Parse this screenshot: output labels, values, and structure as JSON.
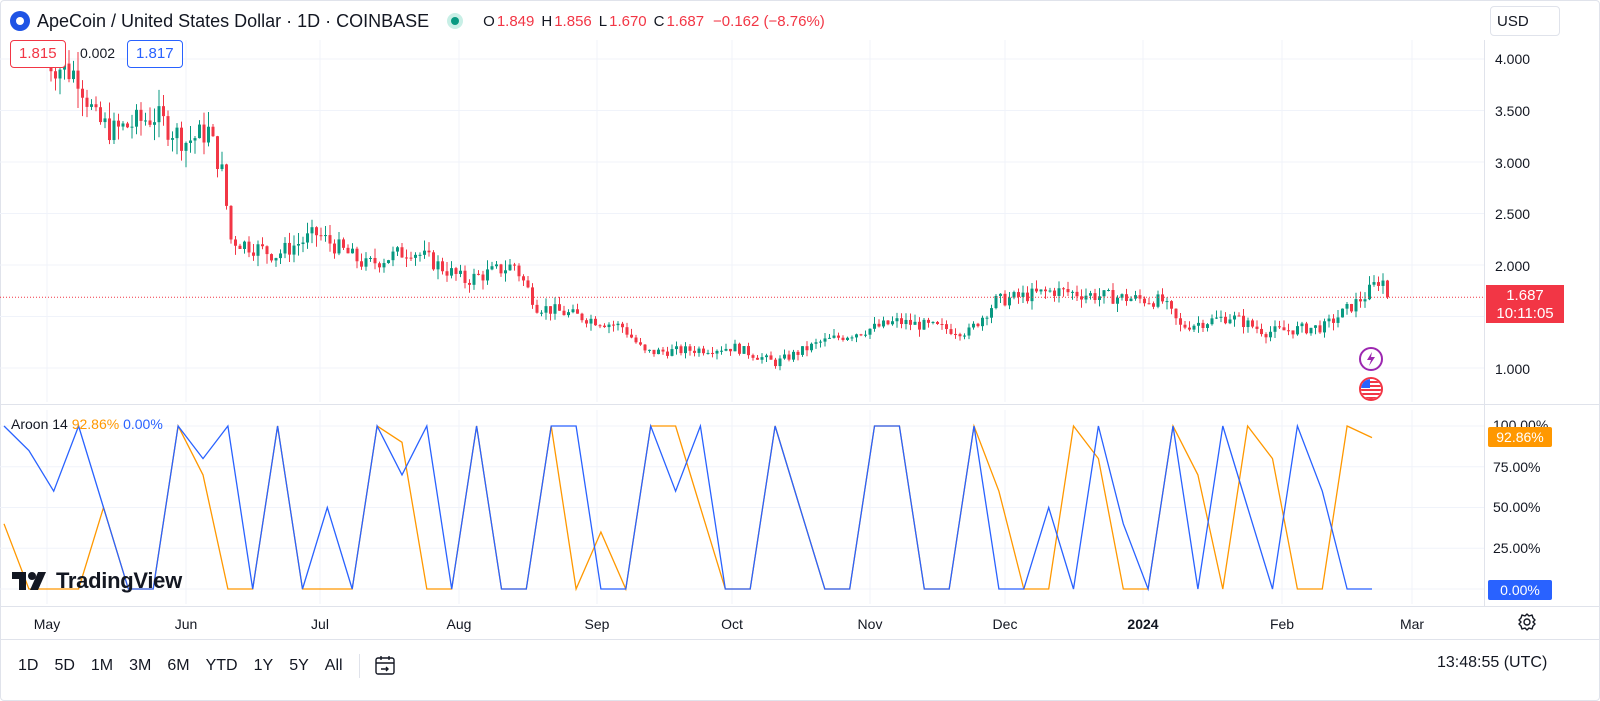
{
  "header": {
    "symbol_title": "ApeCoin / United States Dollar · 1D · COINBASE",
    "ohlc": [
      {
        "label": "O",
        "value": "1.849"
      },
      {
        "label": "H",
        "value": "1.856"
      },
      {
        "label": "L",
        "value": "1.670"
      },
      {
        "label": "C",
        "value": "1.687"
      }
    ],
    "change": "−0.162 (−8.76%)"
  },
  "order_box": {
    "sell": "1.815",
    "spread": "0.002",
    "buy": "1.817"
  },
  "currency_selector": "USD",
  "last_price_label": {
    "price": "1.687",
    "countdown": "10:11:05"
  },
  "aroon_legend": {
    "name": "Aroon",
    "length": "14",
    "up_value": "92.86%",
    "down_value": "0.00%"
  },
  "aroon_tags": {
    "up": "92.86%",
    "down": "0.00%"
  },
  "timeframes": [
    "1D",
    "5D",
    "1M",
    "3M",
    "6M",
    "YTD",
    "1Y",
    "5Y",
    "All"
  ],
  "clock": "13:48:55 (UTC)",
  "branding": "TradingView",
  "icons": {
    "symbol": "apecoin-logo-icon",
    "market": "market-status-icon",
    "date_range": "calendar-range-icon",
    "settings": "gear-icon",
    "event1": "lightning-event-icon",
    "event2": "us-flag-event-icon"
  },
  "colors": {
    "up": "#089981",
    "down": "#f23645",
    "aroon_up": "#ff9800",
    "aroon_down": "#2962ff"
  },
  "chart_data": [
    {
      "type": "candlestick",
      "title": "ApeCoin / United States Dollar · 1D · COINBASE",
      "y_ticks": [
        "4.000",
        "3.500",
        "3.000",
        "2.500",
        "2.000",
        "1.000"
      ],
      "x_ticks": [
        "May",
        "Jun",
        "Jul",
        "Aug",
        "Sep",
        "Oct",
        "Nov",
        "Dec",
        "2024",
        "Feb",
        "Mar"
      ],
      "ylim": [
        0.7,
        4.3
      ],
      "current_price": 1.687,
      "series": [
        {
          "date": "2023-04-29",
          "close": 4.0
        },
        {
          "date": "2023-05-07",
          "close": 3.85
        },
        {
          "date": "2023-05-11",
          "close": 3.4
        },
        {
          "date": "2023-05-15",
          "close": 3.3
        },
        {
          "date": "2023-05-24",
          "close": 3.45
        },
        {
          "date": "2023-05-31",
          "close": 3.2
        },
        {
          "date": "2023-06-05",
          "close": 3.3
        },
        {
          "date": "2023-06-08",
          "close": 2.9
        },
        {
          "date": "2023-06-10",
          "close": 2.25
        },
        {
          "date": "2023-06-20",
          "close": 2.1
        },
        {
          "date": "2023-06-29",
          "close": 2.3
        },
        {
          "date": "2023-07-10",
          "close": 2.0
        },
        {
          "date": "2023-07-20",
          "close": 2.15
        },
        {
          "date": "2023-08-01",
          "close": 1.85
        },
        {
          "date": "2023-08-12",
          "close": 2.0
        },
        {
          "date": "2023-08-17",
          "close": 1.6
        },
        {
          "date": "2023-09-05",
          "close": 1.4
        },
        {
          "date": "2023-09-10",
          "close": 1.15
        },
        {
          "date": "2023-09-30",
          "close": 1.2
        },
        {
          "date": "2023-10-09",
          "close": 1.05
        },
        {
          "date": "2023-10-19",
          "close": 1.25
        },
        {
          "date": "2023-11-05",
          "close": 1.45
        },
        {
          "date": "2023-11-21",
          "close": 1.35
        },
        {
          "date": "2023-11-27",
          "close": 1.65
        },
        {
          "date": "2023-12-10",
          "close": 1.75
        },
        {
          "date": "2023-12-20",
          "close": 1.7
        },
        {
          "date": "2024-01-03",
          "close": 1.65
        },
        {
          "date": "2024-01-07",
          "close": 1.4
        },
        {
          "date": "2024-01-18",
          "close": 1.5
        },
        {
          "date": "2024-01-26",
          "close": 1.35
        },
        {
          "date": "2024-02-08",
          "close": 1.4
        },
        {
          "date": "2024-02-17",
          "close": 1.7
        },
        {
          "date": "2024-02-20",
          "close": 1.849
        },
        {
          "date": "2024-02-21",
          "close": 1.687
        }
      ]
    },
    {
      "type": "line",
      "title": "Aroon 14",
      "y_ticks": [
        "100.00%",
        "75.00%",
        "50.00%",
        "25.00%",
        "0.00%"
      ],
      "ylim": [
        0,
        100
      ],
      "series": [
        {
          "name": "Aroon Up",
          "values": [
            40,
            0,
            0,
            0,
            50,
            0,
            0,
            100,
            70,
            0,
            0,
            100,
            0,
            0,
            0,
            100,
            90,
            0,
            0,
            100,
            0,
            0,
            100,
            0,
            35,
            0,
            100,
            100,
            50,
            0,
            0,
            100,
            50,
            0,
            0,
            100,
            100,
            0,
            0,
            100,
            60,
            0,
            0,
            100,
            80,
            0,
            0,
            100,
            70,
            0,
            100,
            80,
            0,
            0,
            100,
            92.86
          ]
        },
        {
          "name": "Aroon Down",
          "values": [
            100,
            85,
            60,
            100,
            50,
            0,
            0,
            100,
            80,
            100,
            0,
            100,
            0,
            50,
            0,
            100,
            70,
            100,
            0,
            100,
            0,
            0,
            100,
            100,
            0,
            0,
            100,
            60,
            100,
            0,
            0,
            100,
            50,
            0,
            0,
            100,
            100,
            0,
            0,
            100,
            0,
            0,
            50,
            0,
            100,
            40,
            0,
            100,
            0,
            100,
            50,
            0,
            100,
            60,
            0,
            0.0
          ]
        }
      ]
    }
  ]
}
